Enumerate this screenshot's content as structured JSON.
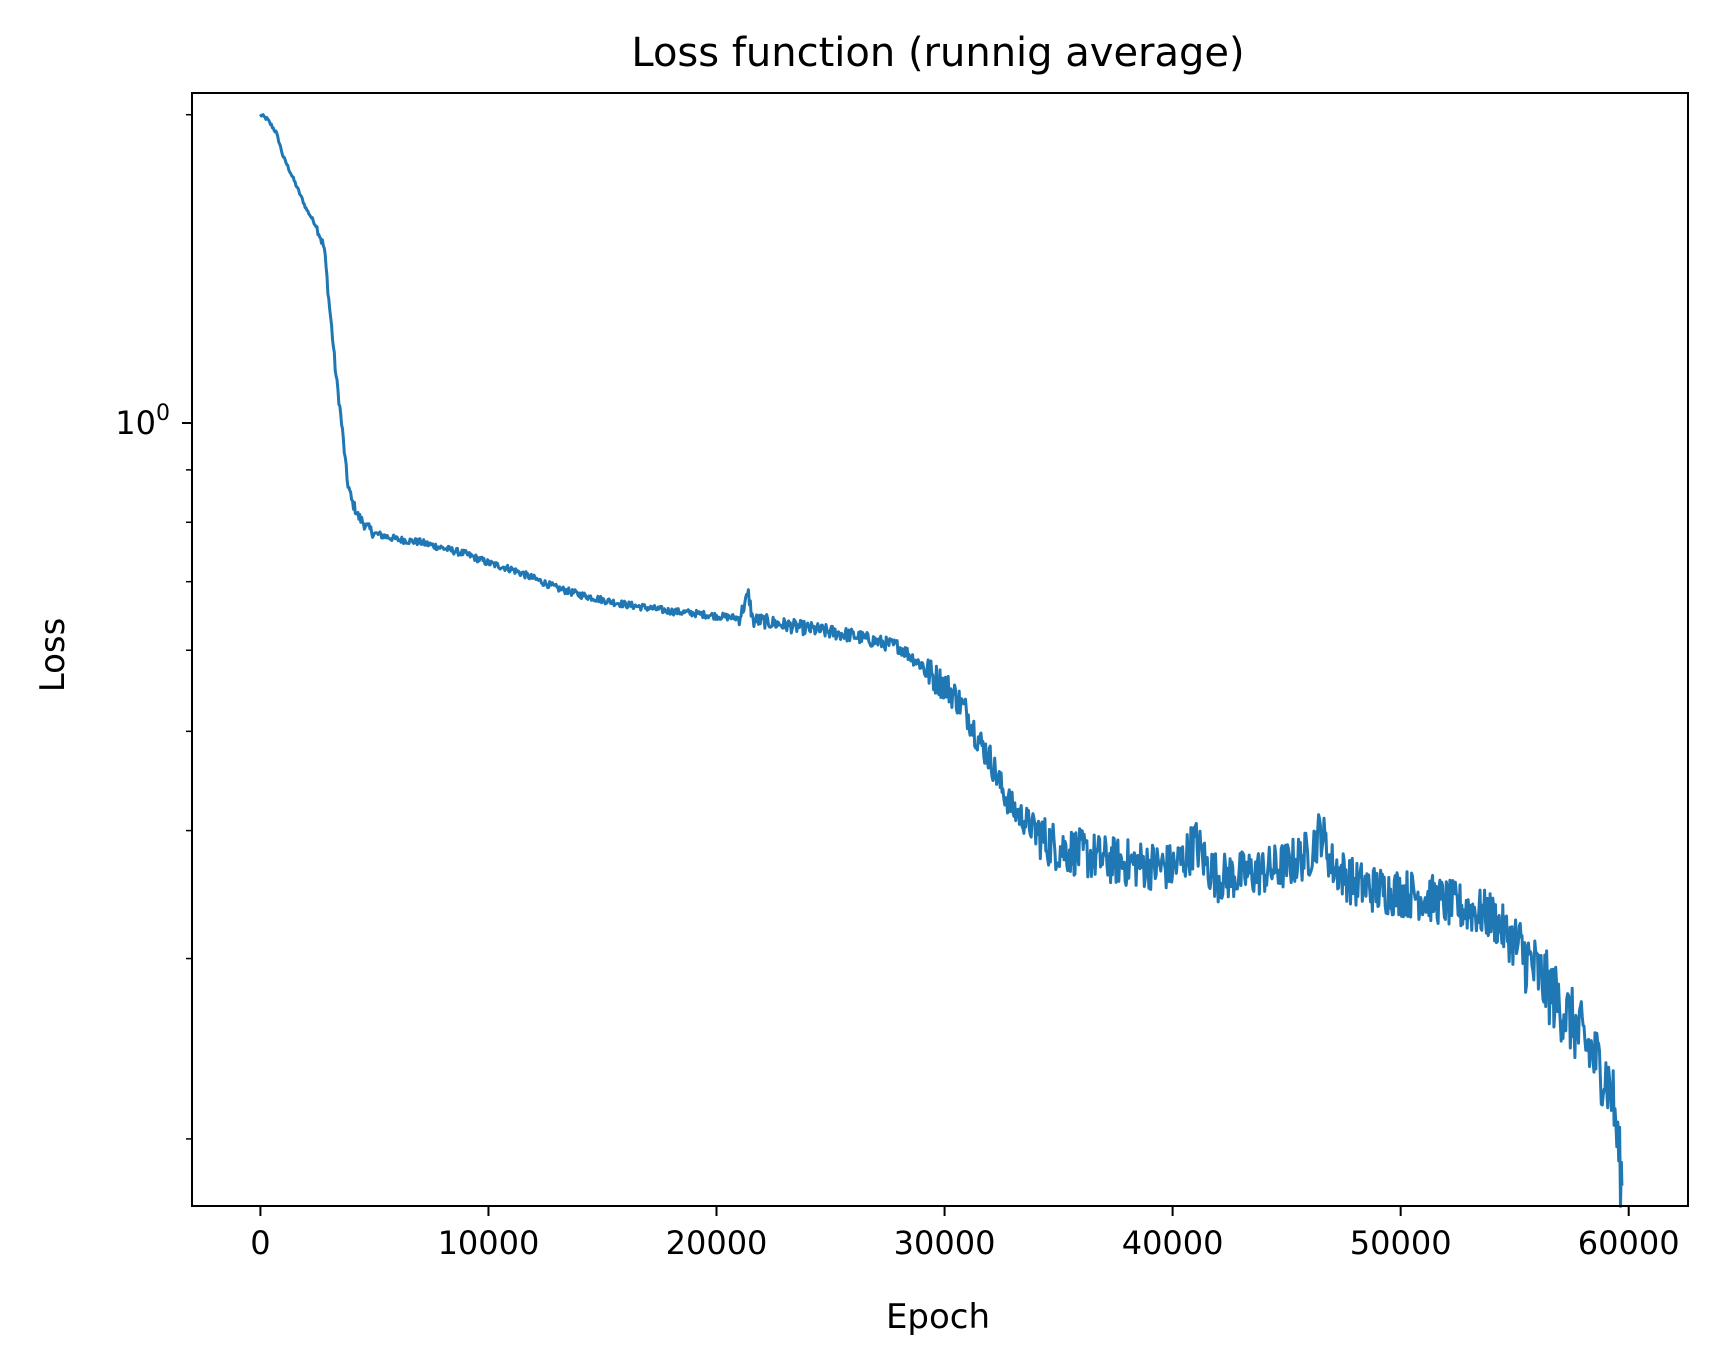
{
  "chart_data": {
    "type": "line",
    "title": "Loss function (runnig average)",
    "xlabel": "Epoch",
    "ylabel": "Loss",
    "xlim": [
      -3000,
      62600
    ],
    "ylim": [
      0.172,
      2.1
    ],
    "yscale": "log",
    "grid": false,
    "line_color": "#1f77b4",
    "xticks": [
      {
        "value": 0,
        "label": "0"
      },
      {
        "value": 10000,
        "label": "10000"
      },
      {
        "value": 20000,
        "label": "20000"
      },
      {
        "value": 30000,
        "label": "30000"
      },
      {
        "value": 40000,
        "label": "40000"
      },
      {
        "value": 50000,
        "label": "50000"
      },
      {
        "value": 60000,
        "label": "60000"
      }
    ],
    "yticks_major": [
      {
        "value": 1.0,
        "base": "10",
        "exponent": "0"
      }
    ],
    "yticks_minor": [
      0.2,
      0.3,
      0.4,
      0.5,
      0.6,
      0.7,
      0.8,
      0.9,
      2.0
    ],
    "series": [
      {
        "x": [
          0,
          300,
          700,
          1000,
          1500,
          2000,
          2500,
          2800,
          3000,
          3300,
          3600,
          3800,
          4000,
          4300,
          4700,
          5000,
          6000,
          7000,
          8000,
          9000,
          10000,
          11000,
          12000,
          13000,
          14000,
          15000,
          16000,
          17000,
          18000,
          19000,
          20000,
          21000,
          21400,
          21600,
          21800,
          22500,
          23000,
          24000,
          25000,
          26000,
          27000,
          28000,
          29000,
          29500,
          30000,
          30500,
          31000,
          31500,
          32000,
          32500,
          33000,
          33500,
          34000,
          34500,
          35000,
          36000,
          37000,
          38000,
          39000,
          40000,
          40500,
          41000,
          41500,
          42000,
          43000,
          44000,
          45000,
          46000,
          46500,
          47000,
          48000,
          49000,
          50000,
          51000,
          52000,
          53000,
          54000,
          55000,
          55500,
          56000,
          56500,
          57000,
          57500,
          58000,
          58500,
          59000,
          59300,
          59500,
          59700
        ],
        "values": [
          2.0,
          1.98,
          1.92,
          1.82,
          1.72,
          1.62,
          1.55,
          1.48,
          1.32,
          1.12,
          0.98,
          0.88,
          0.84,
          0.81,
          0.79,
          0.78,
          0.77,
          0.765,
          0.755,
          0.745,
          0.73,
          0.72,
          0.705,
          0.69,
          0.68,
          0.672,
          0.665,
          0.66,
          0.655,
          0.652,
          0.648,
          0.645,
          0.68,
          0.64,
          0.642,
          0.638,
          0.635,
          0.63,
          0.625,
          0.62,
          0.612,
          0.605,
          0.58,
          0.565,
          0.555,
          0.54,
          0.52,
          0.49,
          0.47,
          0.44,
          0.42,
          0.41,
          0.4,
          0.39,
          0.385,
          0.38,
          0.375,
          0.372,
          0.37,
          0.368,
          0.375,
          0.39,
          0.37,
          0.36,
          0.362,
          0.365,
          0.37,
          0.38,
          0.4,
          0.37,
          0.355,
          0.35,
          0.348,
          0.345,
          0.34,
          0.335,
          0.33,
          0.31,
          0.3,
          0.29,
          0.28,
          0.27,
          0.26,
          0.25,
          0.24,
          0.23,
          0.22,
          0.2,
          0.18
        ]
      }
    ]
  }
}
